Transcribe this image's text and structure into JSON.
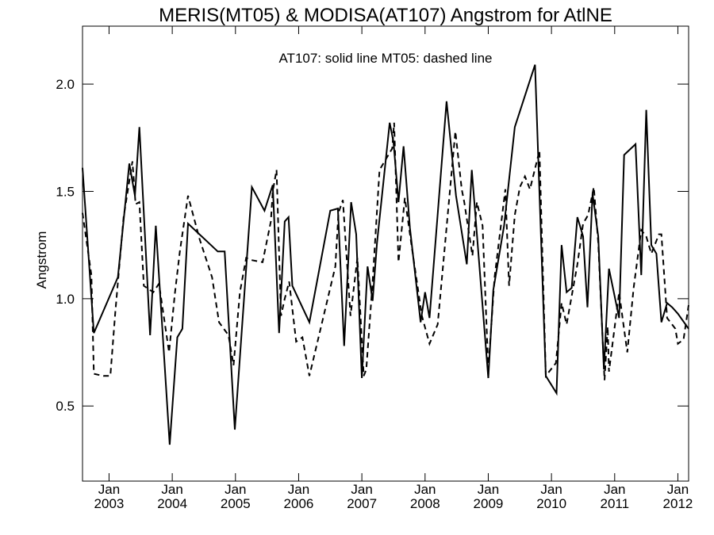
{
  "chart_data": {
    "type": "line",
    "title": "MERIS(MT05) & MODISA(AT107)  Angstrom for AtlNE",
    "annotation": "AT107: solid line   MT05: dashed line",
    "ylabel": "Angstrom",
    "xlabel": "",
    "ylim": [
      0.15,
      2.27
    ],
    "xlim": [
      2002.58,
      2012.17
    ],
    "yticks": [
      {
        "value": 0.5,
        "label": "0.5"
      },
      {
        "value": 1.0,
        "label": "1.0"
      },
      {
        "value": 1.5,
        "label": "1.5"
      },
      {
        "value": 2.0,
        "label": "2.0"
      }
    ],
    "xticks": [
      {
        "value": 2003.0,
        "month": "Jan",
        "year": "2003"
      },
      {
        "value": 2004.0,
        "month": "Jan",
        "year": "2004"
      },
      {
        "value": 2005.0,
        "month": "Jan",
        "year": "2005"
      },
      {
        "value": 2006.0,
        "month": "Jan",
        "year": "2006"
      },
      {
        "value": 2007.0,
        "month": "Jan",
        "year": "2007"
      },
      {
        "value": 2008.0,
        "month": "Jan",
        "year": "2008"
      },
      {
        "value": 2009.0,
        "month": "Jan",
        "year": "2009"
      },
      {
        "value": 2010.0,
        "month": "Jan",
        "year": "2010"
      },
      {
        "value": 2011.0,
        "month": "Jan",
        "year": "2011"
      },
      {
        "value": 2012.0,
        "month": "Jan",
        "year": "2012"
      }
    ],
    "grid": false,
    "series": [
      {
        "style": "solid",
        "x": [
          2002.58,
          2002.76,
          2003.14,
          2003.32,
          2003.41,
          2003.48,
          2003.65,
          2003.74,
          2003.96,
          2004.08,
          2004.16,
          2004.25,
          2004.72,
          2004.83,
          2004.99,
          2005.26,
          2005.46,
          2005.59,
          2005.69,
          2005.78,
          2005.84,
          2005.9,
          2006.17,
          2006.5,
          2006.62,
          2006.72,
          2006.83,
          2006.91,
          2007.0,
          2007.09,
          2007.17,
          2007.24,
          2007.44,
          2007.5,
          2007.58,
          2007.66,
          2007.76,
          2007.93,
          2008.0,
          2008.07,
          2008.34,
          2008.49,
          2008.66,
          2008.74,
          2009.0,
          2009.08,
          2009.25,
          2009.42,
          2009.74,
          2009.91,
          2010.08,
          2010.16,
          2010.24,
          2010.32,
          2010.41,
          2010.5,
          2010.57,
          2010.65,
          2010.74,
          2010.83,
          2010.91,
          2011.07,
          2011.15,
          2011.33,
          2011.42,
          2011.5,
          2011.58,
          2011.66,
          2011.74,
          2011.83,
          2011.91,
          2012.0,
          2012.17
        ],
        "y": [
          1.61,
          0.84,
          1.1,
          1.63,
          1.48,
          1.8,
          0.83,
          1.34,
          0.32,
          0.82,
          0.86,
          1.35,
          1.22,
          1.22,
          0.39,
          1.52,
          1.41,
          1.53,
          0.84,
          1.36,
          1.38,
          1.06,
          0.89,
          1.41,
          1.42,
          0.78,
          1.45,
          1.3,
          0.63,
          1.15,
          0.99,
          1.26,
          1.82,
          1.73,
          1.45,
          1.71,
          1.33,
          0.89,
          1.03,
          0.91,
          1.92,
          1.48,
          1.16,
          1.6,
          0.63,
          1.04,
          1.34,
          1.8,
          2.09,
          0.64,
          0.56,
          1.25,
          1.03,
          1.05,
          1.38,
          1.29,
          0.96,
          1.49,
          1.29,
          0.67,
          1.14,
          0.91,
          1.67,
          1.72,
          1.11,
          1.88,
          1.25,
          1.21,
          0.89,
          0.98,
          0.96,
          0.93,
          0.86
        ]
      },
      {
        "style": "dashed",
        "x": [
          2002.58,
          2002.72,
          2002.76,
          2002.91,
          2003.02,
          2003.1,
          2003.23,
          2003.37,
          2003.42,
          2003.48,
          2003.55,
          2003.7,
          2003.79,
          2003.95,
          2004.04,
          2004.12,
          2004.25,
          2004.43,
          2004.63,
          2004.74,
          2004.89,
          2004.97,
          2005.07,
          2005.17,
          2005.25,
          2005.43,
          2005.56,
          2005.59,
          2005.65,
          2005.72,
          2005.78,
          2005.85,
          2005.96,
          2006.06,
          2006.17,
          2006.58,
          2006.63,
          2006.7,
          2006.82,
          2006.93,
          2007.03,
          2007.07,
          2007.17,
          2007.28,
          2007.38,
          2007.48,
          2007.51,
          2007.58,
          2007.68,
          2007.78,
          2007.95,
          2008.07,
          2008.2,
          2008.48,
          2008.58,
          2008.62,
          2008.75,
          2008.82,
          2008.91,
          2009.0,
          2009.1,
          2009.27,
          2009.33,
          2009.42,
          2009.5,
          2009.58,
          2009.66,
          2009.81,
          2009.91,
          2010.07,
          2010.16,
          2010.24,
          2010.41,
          2010.5,
          2010.58,
          2010.67,
          2010.74,
          2010.84,
          2010.89,
          2010.91,
          2011.07,
          2011.13,
          2011.2,
          2011.3,
          2011.42,
          2011.5,
          2011.58,
          2011.7,
          2011.74,
          2011.83,
          2011.96,
          2012.0,
          2012.09,
          2012.17
        ],
        "y": [
          1.4,
          1.11,
          0.65,
          0.64,
          0.64,
          0.94,
          1.38,
          1.64,
          1.44,
          1.45,
          1.06,
          1.03,
          1.07,
          0.75,
          1.02,
          1.22,
          1.48,
          1.28,
          1.1,
          0.89,
          0.83,
          0.69,
          1.03,
          1.19,
          1.18,
          1.17,
          1.36,
          1.5,
          1.6,
          0.92,
          1.0,
          1.08,
          0.8,
          0.82,
          0.64,
          1.15,
          1.4,
          1.46,
          0.92,
          1.19,
          0.64,
          0.67,
          1.08,
          1.6,
          1.65,
          1.7,
          1.82,
          1.17,
          1.47,
          1.26,
          0.92,
          0.79,
          0.88,
          1.78,
          1.51,
          1.45,
          1.2,
          1.45,
          1.34,
          0.67,
          1.1,
          1.51,
          1.06,
          1.39,
          1.52,
          1.57,
          1.51,
          1.69,
          0.64,
          0.7,
          0.98,
          0.88,
          1.16,
          1.35,
          1.39,
          1.52,
          1.26,
          0.62,
          0.87,
          0.66,
          1.03,
          0.9,
          0.75,
          1.05,
          1.32,
          1.29,
          1.21,
          1.3,
          1.3,
          0.91,
          0.86,
          0.79,
          0.81,
          0.97
        ]
      }
    ]
  }
}
